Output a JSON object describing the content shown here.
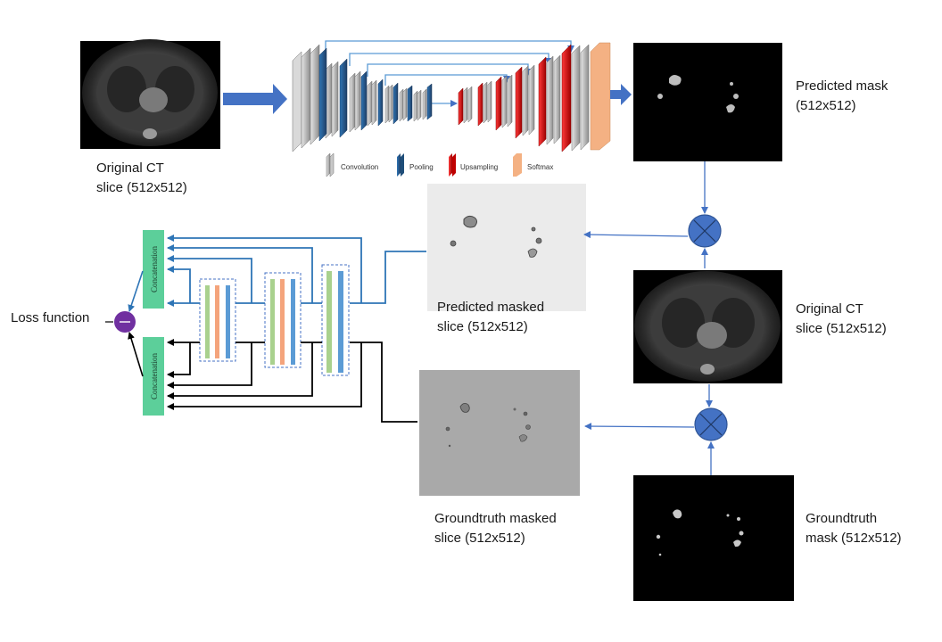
{
  "labels": {
    "ct_top_1": "Original CT",
    "ct_top_2": "slice (512x512)",
    "pred_mask_1": "Predicted mask",
    "pred_mask_2": "(512x512)",
    "ct_right_1": "Original CT",
    "ct_right_2": "slice (512x512)",
    "pred_masked_1": "Predicted masked",
    "pred_masked_2": "slice (512x512)",
    "gt_masked_1": "Groundtruth masked",
    "gt_masked_2": "slice (512x512)",
    "gt_mask_1": "Groundtruth",
    "gt_mask_2": "mask (512x512)",
    "loss": "Loss function",
    "concat": "Concatenation"
  },
  "legend": {
    "convolution": "Convolution",
    "pooling": "Pooling",
    "upsampling": "Upsampling",
    "softmax": "Softmax"
  },
  "colors": {
    "arrow_blue": "#4472c4",
    "convolution": "#a6a6a6",
    "pooling": "#1f4e79",
    "upsampling": "#c00000",
    "softmax": "#f4b183",
    "concat_box": "#5ccf9a",
    "loss_node": "#7030a0",
    "feature_green": "#a9d18e",
    "feature_orange": "#f4a47c",
    "feature_blue": "#5b9bd5",
    "pred_branch": "#2e75b6",
    "gt_branch": "#000000"
  },
  "icons": {
    "multiply": "multiply-circle-icon",
    "minus": "minus-circle-icon"
  }
}
